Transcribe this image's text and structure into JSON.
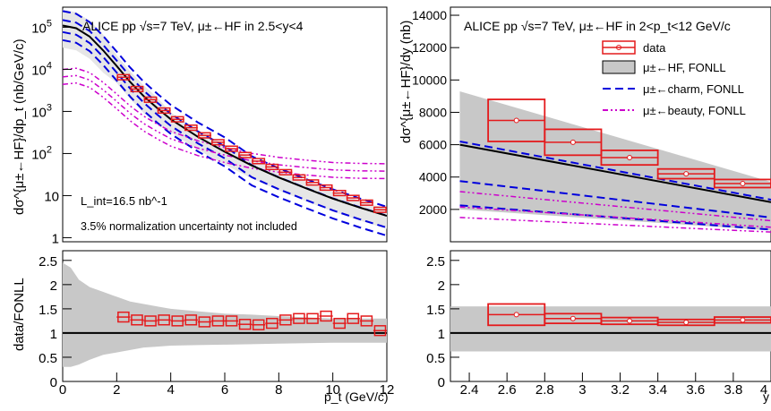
{
  "chart_data": [
    {
      "type": "line",
      "panel": "left-top",
      "title": "ALICE pp √s=7 TeV, μ±←HF in 2.5<y<4",
      "ylabel": "dσ^{μ±←HF}/dp_t (nb/GeV/c)",
      "xlabel": "",
      "xlim": [
        0,
        12
      ],
      "ylim": [
        0.8,
        300000
      ],
      "yscale": "log",
      "yticks": [
        "1",
        "10",
        "10^2",
        "10^3",
        "10^4",
        "10^5"
      ],
      "annotations": [
        "L_int=16.5 nb^-1",
        "3.5% normalization uncertainty not included"
      ],
      "series": [
        {
          "x": [
            2.25,
            2.75,
            3.25,
            3.75,
            4.25,
            4.75,
            5.25,
            5.75,
            6.25,
            6.75,
            7.25,
            7.75,
            8.25,
            8.75,
            9.25,
            9.75,
            10.25,
            10.75,
            11.25,
            11.75
          ],
          "values": [
            6500,
            3400,
            1900,
            1050,
            650,
            410,
            270,
            185,
            130,
            92,
            66,
            48,
            36,
            27,
            20.5,
            15.5,
            11.5,
            8.8,
            6.8,
            4.6
          ]
        },
        {
          "x": [
            0,
            0.5,
            1,
            1.5,
            2,
            2.5,
            3,
            3.5,
            4,
            5,
            6,
            7,
            8,
            9,
            10,
            11,
            12
          ],
          "values": [
            110000,
            95000,
            60000,
            28000,
            12000,
            5000,
            2300,
            1200,
            650,
            250,
            110,
            52,
            27,
            15,
            8.5,
            5.2,
            3.3
          ]
        }
      ]
    },
    {
      "type": "line",
      "panel": "left-bottom",
      "ylabel": "data/FONLL",
      "xlabel": "p_t (GeV/c)",
      "xlim": [
        0,
        12
      ],
      "ylim": [
        0,
        2.7
      ],
      "xticks": [
        "0",
        "2",
        "4",
        "6",
        "8",
        "10",
        "12"
      ],
      "yticks": [
        "0",
        "0.5",
        "1",
        "1.5",
        "2",
        "2.5"
      ],
      "series": [
        {
          "x": [
            2.25,
            2.75,
            3.25,
            3.75,
            4.25,
            4.75,
            5.25,
            5.75,
            6.25,
            6.75,
            7.25,
            7.75,
            8.25,
            8.75,
            9.25,
            9.75,
            10.25,
            10.75,
            11.25,
            11.75
          ],
          "values": [
            1.33,
            1.27,
            1.25,
            1.27,
            1.25,
            1.27,
            1.23,
            1.25,
            1.25,
            1.18,
            1.17,
            1.2,
            1.27,
            1.3,
            1.3,
            1.35,
            1.2,
            1.3,
            1.25,
            1.05
          ]
        }
      ]
    },
    {
      "type": "line",
      "panel": "right-top",
      "title": "ALICE pp √s=7 TeV, μ±←HF in 2<p_t<12 GeV/c",
      "ylabel": "dσ^{μ±←HF}/dy (nb)",
      "xlabel": "",
      "xlim": [
        2.3,
        4.0
      ],
      "ylim": [
        0,
        14500
      ],
      "yticks": [
        "2000",
        "4000",
        "6000",
        "8000",
        "10000",
        "12000",
        "14000"
      ],
      "legend": {
        "placement": "top-right",
        "entries": [
          "data",
          "μ±←HF, FONLL",
          "μ±←charm, FONLL",
          "μ±←beauty, FONLL"
        ]
      },
      "series": [
        {
          "x": [
            2.65,
            2.95,
            3.25,
            3.55,
            3.85
          ],
          "values": [
            7500,
            6150,
            5200,
            4200,
            3600
          ]
        },
        {
          "x": [
            2.35,
            4.0
          ],
          "values": [
            6000,
            2450
          ]
        }
      ]
    },
    {
      "type": "line",
      "panel": "right-bottom",
      "ylabel": "",
      "xlabel": "y",
      "xlim": [
        2.3,
        4.0
      ],
      "ylim": [
        0,
        2.7
      ],
      "xticks": [
        "2.4",
        "2.6",
        "2.8",
        "3",
        "3.2",
        "3.4",
        "3.6",
        "3.8",
        "4"
      ],
      "yticks": [
        "0",
        "0.5",
        "1",
        "1.5",
        "2",
        "2.5"
      ],
      "series": [
        {
          "x": [
            2.65,
            2.95,
            3.25,
            3.55,
            3.85
          ],
          "values": [
            1.38,
            1.3,
            1.25,
            1.22,
            1.27
          ]
        }
      ]
    }
  ],
  "colors": {
    "data": "#e41a1c",
    "band": "#c8c8c8",
    "charm": "#0000dd",
    "beauty": "#cc00cc",
    "fonll": "#000000"
  }
}
